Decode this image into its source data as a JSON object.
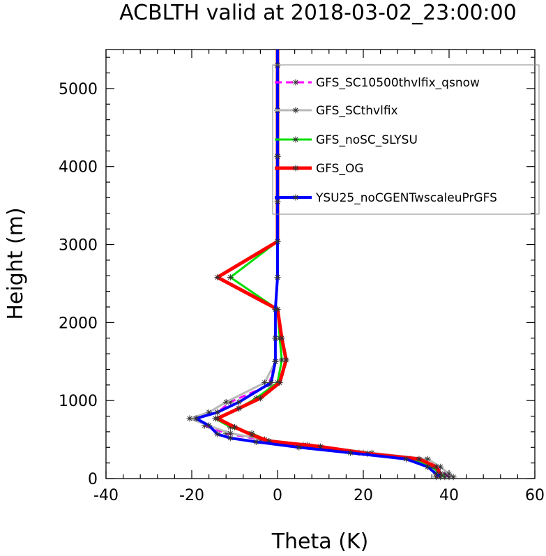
{
  "chart_data": {
    "type": "line",
    "title": "ACBLTH valid at 2018-03-02_23:00:00",
    "xlabel": "Theta (K)",
    "ylabel": "Height (m)",
    "xlim": [
      -40,
      60
    ],
    "ylim": [
      0,
      5500
    ],
    "xticks": [
      -40,
      -20,
      0,
      20,
      40,
      60
    ],
    "yticks": [
      0,
      1000,
      2000,
      3000,
      4000,
      5000
    ],
    "legend_position": "top-right",
    "grid": false,
    "series": [
      {
        "name": "GFS_SC10500thvlfix_qsnow",
        "color": "#ff00ff",
        "dashed": true,
        "width": 3,
        "points": [
          [
            40,
            20
          ],
          [
            39,
            60
          ],
          [
            37,
            150
          ],
          [
            33,
            250
          ],
          [
            20,
            330
          ],
          [
            6,
            430
          ],
          [
            -4,
            500
          ],
          [
            -12,
            580
          ],
          [
            -17,
            680
          ],
          [
            -19,
            770
          ],
          [
            -14,
            850
          ],
          [
            -11,
            980
          ],
          [
            -2,
            1200
          ],
          [
            -0.5,
            1500
          ],
          [
            -0.5,
            1800
          ],
          [
            -0.5,
            2170
          ],
          [
            0,
            2580
          ],
          [
            0,
            3040
          ],
          [
            0,
            3550
          ],
          [
            0,
            4130
          ],
          [
            0,
            4720
          ],
          [
            0,
            5300
          ],
          [
            0,
            5500
          ]
        ]
      },
      {
        "name": "GFS_SCthvlfix",
        "color": "#b8b8b8",
        "dashed": false,
        "width": 3,
        "points": [
          [
            41,
            20
          ],
          [
            40,
            60
          ],
          [
            38,
            150
          ],
          [
            35,
            250
          ],
          [
            22,
            330
          ],
          [
            7,
            430
          ],
          [
            -3,
            500
          ],
          [
            -11,
            580
          ],
          [
            -16,
            680
          ],
          [
            -20.5,
            770
          ],
          [
            -16,
            850
          ],
          [
            -12,
            980
          ],
          [
            -3,
            1230
          ],
          [
            -0.5,
            1500
          ],
          [
            -0.5,
            1800
          ],
          [
            -0.5,
            2170
          ],
          [
            0,
            2580
          ],
          [
            0,
            3040
          ],
          [
            0,
            3550
          ],
          [
            0,
            4130
          ],
          [
            0,
            4720
          ],
          [
            0,
            5300
          ],
          [
            0,
            5500
          ]
        ]
      },
      {
        "name": "GFS_noSC_SLYSU",
        "color": "#00e000",
        "dashed": false,
        "width": 3,
        "points": [
          [
            39,
            20
          ],
          [
            38,
            60
          ],
          [
            36,
            150
          ],
          [
            31,
            250
          ],
          [
            19,
            330
          ],
          [
            8,
            410
          ],
          [
            -2,
            480
          ],
          [
            -6,
            580
          ],
          [
            -11,
            660
          ],
          [
            -14.5,
            770
          ],
          [
            -9,
            900
          ],
          [
            -5,
            1030
          ],
          [
            0,
            1230
          ],
          [
            1,
            1520
          ],
          [
            0.5,
            1800
          ],
          [
            0,
            2170
          ],
          [
            -11,
            2580
          ],
          [
            0,
            3040
          ],
          [
            0,
            3550
          ],
          [
            0,
            4130
          ],
          [
            0,
            4720
          ],
          [
            0,
            5300
          ],
          [
            0,
            5500
          ]
        ]
      },
      {
        "name": "GFS_OG",
        "color": "#ff0000",
        "dashed": false,
        "width": 5,
        "points": [
          [
            37,
            20
          ],
          [
            38,
            60
          ],
          [
            37,
            150
          ],
          [
            33,
            250
          ],
          [
            21,
            320
          ],
          [
            10,
            410
          ],
          [
            -2,
            480
          ],
          [
            -6,
            560
          ],
          [
            -10,
            660
          ],
          [
            -14,
            770
          ],
          [
            -9,
            900
          ],
          [
            -4,
            1030
          ],
          [
            0.5,
            1230
          ],
          [
            2,
            1520
          ],
          [
            1,
            1800
          ],
          [
            0,
            2170
          ],
          [
            -14,
            2580
          ],
          [
            0,
            3040
          ],
          [
            0,
            3550
          ],
          [
            0,
            4130
          ],
          [
            0,
            4720
          ],
          [
            0,
            5300
          ],
          [
            0,
            5500
          ]
        ]
      },
      {
        "name": "YSU25_noCGENTwscaleuPrGFS",
        "color": "#0000ff",
        "dashed": false,
        "width": 4,
        "points": [
          [
            38,
            20
          ],
          [
            37,
            60
          ],
          [
            35,
            150
          ],
          [
            30,
            250
          ],
          [
            17,
            330
          ],
          [
            5,
            400
          ],
          [
            -5,
            470
          ],
          [
            -11,
            520
          ],
          [
            -14,
            570
          ],
          [
            -16,
            680
          ],
          [
            -19,
            770
          ],
          [
            -14,
            850
          ],
          [
            -9,
            980
          ],
          [
            -1.5,
            1230
          ],
          [
            -0.5,
            1500
          ],
          [
            -0.5,
            1800
          ],
          [
            -0.5,
            2170
          ],
          [
            0,
            2580
          ],
          [
            0,
            3040
          ],
          [
            0,
            3550
          ],
          [
            0,
            4130
          ],
          [
            0,
            4720
          ],
          [
            0,
            5300
          ],
          [
            0,
            5500
          ]
        ]
      }
    ]
  }
}
